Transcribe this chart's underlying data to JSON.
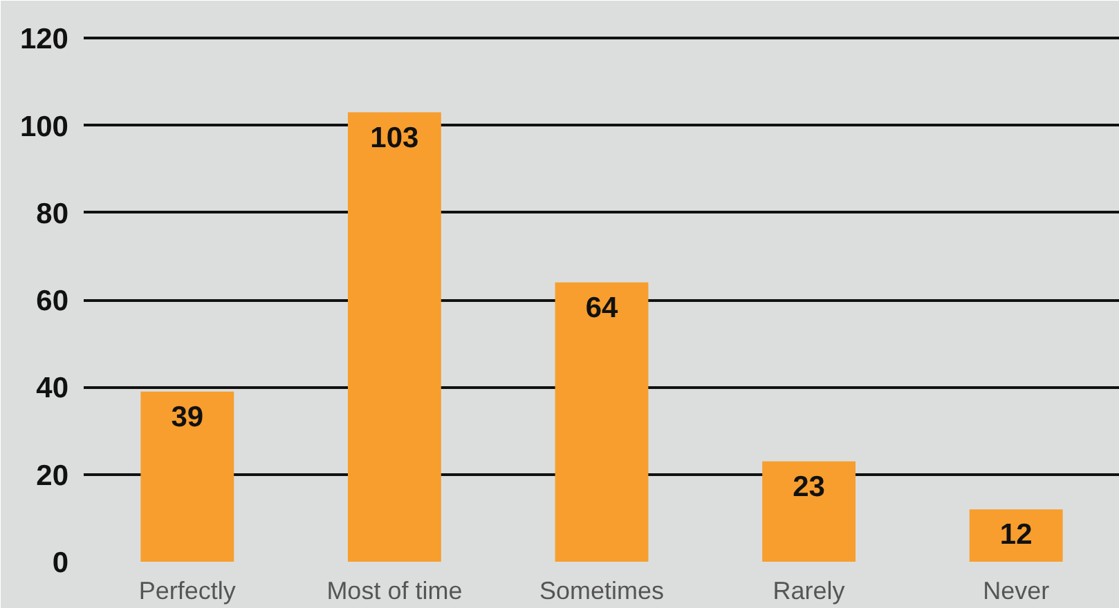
{
  "chart_data": {
    "type": "bar",
    "categories": [
      "Perfectly",
      "Most of time",
      "Sometimes",
      "Rarely",
      "Never"
    ],
    "values": [
      39,
      103,
      64,
      23,
      12
    ],
    "color": "#f79e2e",
    "ylim": [
      0,
      127
    ],
    "yticks": [
      0,
      20,
      40,
      60,
      80,
      100,
      120
    ],
    "grid": "y",
    "data_labels": true
  }
}
